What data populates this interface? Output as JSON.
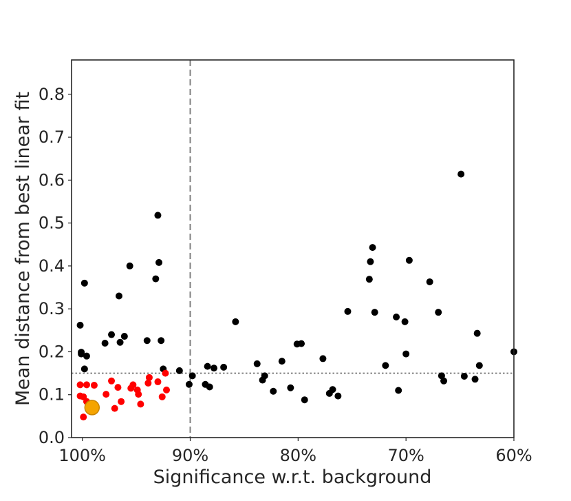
{
  "chart_data": {
    "type": "scatter",
    "title": "",
    "xlabel": "Significance w.r.t. background",
    "ylabel": "Mean distance from best linear fit",
    "x_unit": "% significance (axis reversed)",
    "xlim": [
      101,
      60
    ],
    "ylim": [
      0,
      0.88
    ],
    "x_ticks": [
      100,
      90,
      80,
      70,
      60
    ],
    "x_tick_labels": [
      "100%",
      "90%",
      "80%",
      "70%",
      "60%"
    ],
    "y_ticks": [
      0.0,
      0.1,
      0.2,
      0.3,
      0.4,
      0.5,
      0.6,
      0.7,
      0.8
    ],
    "y_tick_labels": [
      "0.0",
      "0.1",
      "0.2",
      "0.3",
      "0.4",
      "0.5",
      "0.6",
      "0.7",
      "0.8"
    ],
    "grid": false,
    "reference_lines": [
      {
        "orientation": "vertical",
        "x": 90,
        "style": "dashed",
        "color": "#808080"
      },
      {
        "orientation": "horizontal",
        "y": 0.15,
        "style": "dotted",
        "color": "#808080"
      }
    ],
    "colors": {
      "black": "#000000",
      "red": "#ff0000",
      "highlight": "#f5a400",
      "highlight_edge": "#c88400",
      "axes": "#262626"
    },
    "series": [
      {
        "color": "#000000",
        "points": [
          [
            100.2,
            0.262
          ],
          [
            100.1,
            0.199
          ],
          [
            100.1,
            0.195
          ],
          [
            99.8,
            0.36
          ],
          [
            99.8,
            0.16
          ],
          [
            99.6,
            0.19
          ],
          [
            97.9,
            0.22
          ],
          [
            97.3,
            0.24
          ],
          [
            96.6,
            0.33
          ],
          [
            96.5,
            0.222
          ],
          [
            96.1,
            0.236
          ],
          [
            95.6,
            0.4
          ],
          [
            94.0,
            0.226
          ],
          [
            93.2,
            0.37
          ],
          [
            93.0,
            0.518
          ],
          [
            92.9,
            0.408
          ],
          [
            92.7,
            0.226
          ],
          [
            92.5,
            0.16
          ],
          [
            91.0,
            0.156
          ],
          [
            90.1,
            0.124
          ],
          [
            89.8,
            0.144
          ],
          [
            88.6,
            0.124
          ],
          [
            88.4,
            0.166
          ],
          [
            88.2,
            0.118
          ],
          [
            87.8,
            0.162
          ],
          [
            86.9,
            0.164
          ],
          [
            85.8,
            0.27
          ],
          [
            83.8,
            0.172
          ],
          [
            83.3,
            0.134
          ],
          [
            83.1,
            0.144
          ],
          [
            82.3,
            0.108
          ],
          [
            81.5,
            0.178
          ],
          [
            80.7,
            0.116
          ],
          [
            80.1,
            0.218
          ],
          [
            79.7,
            0.219
          ],
          [
            79.4,
            0.088
          ],
          [
            77.7,
            0.184
          ],
          [
            77.1,
            0.103
          ],
          [
            76.8,
            0.112
          ],
          [
            76.3,
            0.097
          ],
          [
            75.4,
            0.294
          ],
          [
            73.4,
            0.369
          ],
          [
            73.3,
            0.41
          ],
          [
            73.1,
            0.443
          ],
          [
            72.9,
            0.292
          ],
          [
            71.9,
            0.168
          ],
          [
            70.9,
            0.281
          ],
          [
            70.7,
            0.11
          ],
          [
            70.1,
            0.27
          ],
          [
            70.0,
            0.195
          ],
          [
            69.7,
            0.413
          ],
          [
            67.8,
            0.363
          ],
          [
            67.0,
            0.292
          ],
          [
            66.7,
            0.144
          ],
          [
            66.5,
            0.132
          ],
          [
            64.9,
            0.614
          ],
          [
            64.6,
            0.143
          ],
          [
            63.6,
            0.136
          ],
          [
            63.4,
            0.243
          ],
          [
            63.2,
            0.168
          ],
          [
            60.0,
            0.2
          ]
        ]
      },
      {
        "color": "#ff0000",
        "points": [
          [
            100.2,
            0.123
          ],
          [
            100.2,
            0.097
          ],
          [
            99.9,
            0.095
          ],
          [
            99.9,
            0.048
          ],
          [
            99.6,
            0.123
          ],
          [
            99.6,
            0.084
          ],
          [
            99.3,
            0.078
          ],
          [
            99.0,
            0.067
          ],
          [
            98.9,
            0.122
          ],
          [
            98.8,
            0.075
          ],
          [
            97.8,
            0.101
          ],
          [
            97.3,
            0.132
          ],
          [
            97.0,
            0.068
          ],
          [
            96.7,
            0.117
          ],
          [
            96.4,
            0.084
          ],
          [
            95.5,
            0.115
          ],
          [
            95.3,
            0.123
          ],
          [
            94.9,
            0.111
          ],
          [
            94.8,
            0.101
          ],
          [
            94.6,
            0.078
          ],
          [
            93.9,
            0.127
          ],
          [
            93.8,
            0.14
          ],
          [
            93.0,
            0.13
          ],
          [
            92.6,
            0.095
          ],
          [
            92.3,
            0.15
          ],
          [
            92.2,
            0.111
          ]
        ]
      },
      {
        "color": "#f5a400",
        "points": [
          [
            99.1,
            0.07
          ]
        ]
      }
    ]
  }
}
